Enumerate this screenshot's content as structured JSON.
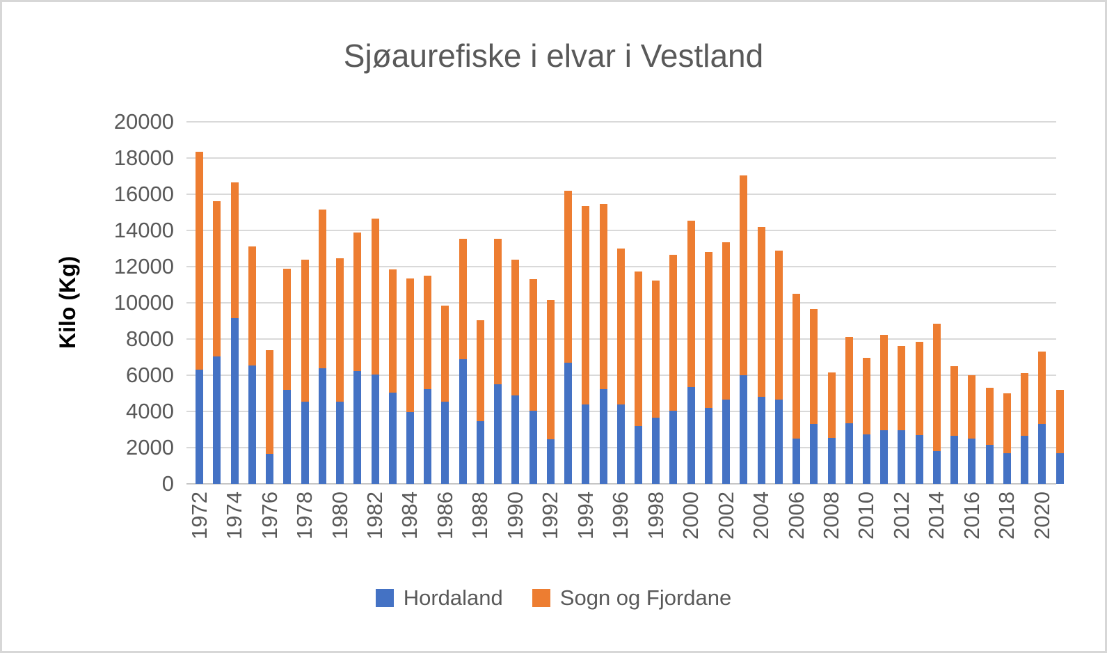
{
  "title": "Sjøaurefiske i elvar i Vestland",
  "y_axis": {
    "label": "Kilo (Kg)",
    "tick_min": 0,
    "tick_max": 20000,
    "tick_step": 2000
  },
  "x_axis": {
    "tick_labels": [
      "1972",
      "1974",
      "1976",
      "1978",
      "1980",
      "1982",
      "1984",
      "1986",
      "1988",
      "1990",
      "1992",
      "1994",
      "1996",
      "1998",
      "2000",
      "2002",
      "2004",
      "2006",
      "2008",
      "2010",
      "2012",
      "2014",
      "2016",
      "2018",
      "2020"
    ]
  },
  "legend": {
    "items": [
      {
        "label": "Hordaland",
        "color": "#4472C4"
      },
      {
        "label": "Sogn og Fjordane",
        "color": "#ED7D31"
      }
    ]
  },
  "chart_data": {
    "type": "bar",
    "stacked": true,
    "title": "Sjøaurefiske i elvar i Vestland",
    "xlabel": "",
    "ylabel": "Kilo (Kg)",
    "ylim": [
      0,
      20000
    ],
    "ytick_step": 2000,
    "grid": "horizontal",
    "legend_position": "bottom",
    "x_tick_interval": 2,
    "categories": [
      1972,
      1973,
      1974,
      1975,
      1976,
      1977,
      1978,
      1979,
      1980,
      1981,
      1982,
      1983,
      1984,
      1985,
      1986,
      1987,
      1988,
      1989,
      1990,
      1991,
      1992,
      1993,
      1994,
      1995,
      1996,
      1997,
      1998,
      1999,
      2000,
      2001,
      2002,
      2003,
      2004,
      2005,
      2006,
      2007,
      2008,
      2009,
      2010,
      2011,
      2012,
      2013,
      2014,
      2015,
      2016,
      2017,
      2018,
      2019,
      2020,
      2021
    ],
    "series": [
      {
        "name": "Hordaland",
        "color": "#4472C4",
        "values": [
          6300,
          7050,
          9150,
          6550,
          1650,
          5200,
          4550,
          6400,
          4550,
          6250,
          6050,
          5050,
          3950,
          5250,
          4550,
          6900,
          3450,
          5500,
          4900,
          4050,
          2450,
          6700,
          4400,
          5250,
          4400,
          3200,
          3650,
          4050,
          5350,
          4200,
          4650,
          6000,
          4800,
          4650,
          2500,
          3300,
          2550,
          3350,
          2750,
          2950,
          2950,
          2700,
          1800,
          2650,
          2500,
          2150,
          1700,
          2650,
          3300,
          1700
        ]
      },
      {
        "name": "Sogn og Fjordane",
        "color": "#ED7D31",
        "values": [
          12050,
          8550,
          7500,
          6550,
          5750,
          6700,
          7850,
          8750,
          7900,
          7650,
          8600,
          6800,
          7400,
          6250,
          5300,
          6650,
          5600,
          8050,
          7500,
          7250,
          7700,
          9500,
          10950,
          10200,
          8600,
          8550,
          7600,
          8600,
          9200,
          8600,
          8700,
          11050,
          9400,
          8250,
          8000,
          6350,
          3600,
          4750,
          4200,
          5300,
          4650,
          5150,
          7050,
          3850,
          3500,
          3150,
          3300,
          3450,
          4000,
          3500
        ]
      }
    ]
  }
}
